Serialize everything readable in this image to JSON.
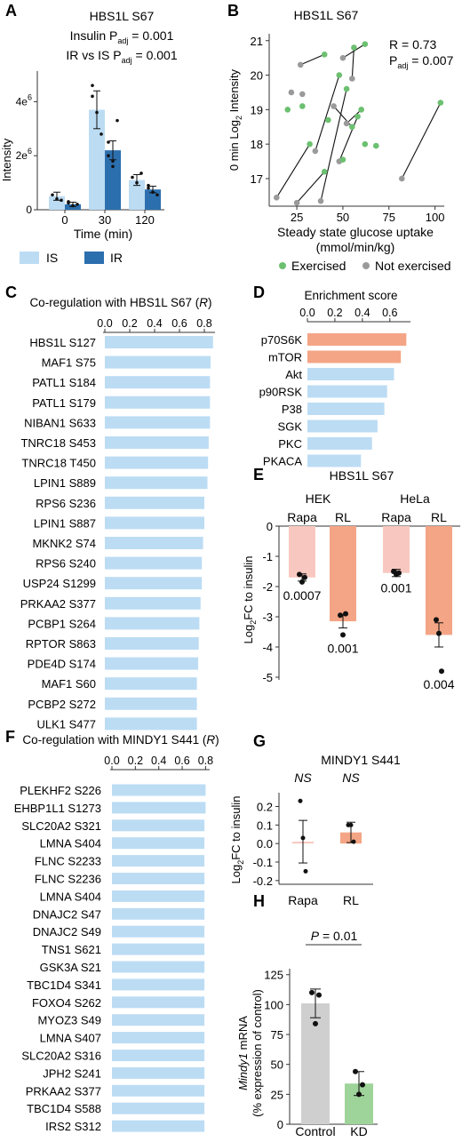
{
  "colors": {
    "IS": "#bcdcf4",
    "IR": "#2c6fae",
    "exercised": "#6cc070",
    "not_exercised": "#9a9a9a",
    "bar_blue": "#bcdcf4",
    "salmon": "#f4a585",
    "salmon_light": "#f8c8c0",
    "gray_bar": "#cfcfcf",
    "green_bar": "#9ed49a"
  },
  "panel_letters": {
    "A": "A",
    "B": "B",
    "C": "C",
    "D": "D",
    "E": "E",
    "F": "F",
    "G": "G",
    "H": "H"
  },
  "chart_data": [
    {
      "panel": "A",
      "type": "bar",
      "title": "HBS1L S67",
      "annot1_pre": "Insulin P",
      "annot1_sub": "adj",
      "annot1_post": " = 0.001",
      "annot2_pre": "IR vs IS P",
      "annot2_sub": "adj",
      "annot2_post": " = 0.001",
      "ylabel": "Intensity",
      "xlabel": "Time (min)",
      "categories": [
        "0",
        "30",
        "120"
      ],
      "yticks": [
        {
          "base": "0",
          "exp": ""
        },
        {
          "base": "2e",
          "exp": "6"
        },
        {
          "base": "4e",
          "exp": "6"
        }
      ],
      "ylim": [
        0,
        5000000
      ],
      "series": [
        {
          "name": "IS",
          "values": [
            500000,
            3700000,
            1100000
          ],
          "err": [
            150000,
            700000,
            200000
          ]
        },
        {
          "name": "IR",
          "values": [
            200000,
            2200000,
            750000
          ],
          "err": [
            80000,
            350000,
            120000
          ]
        }
      ],
      "legend": [
        "IS",
        "IR"
      ]
    },
    {
      "panel": "B",
      "type": "scatter",
      "title": "HBS1L S67",
      "annot_r": "R = 0.73",
      "annot_p_pre": "P",
      "annot_p_sub": "adj",
      "annot_p_post": " = 0.007",
      "xlabel": "Steady state glucose uptake",
      "xlabel2": "(mmol/min/kg)",
      "ylabel": "0 min Log",
      "ylabel_sub": "2",
      "ylabel_post": " Intensity",
      "xlim": [
        10,
        105
      ],
      "ylim": [
        16.2,
        21.2
      ],
      "xticks": [
        25,
        50,
        75,
        100
      ],
      "yticks": [
        17,
        18,
        19,
        20,
        21
      ],
      "legend": [
        "Exercised",
        "Not exercised"
      ],
      "pairs": [
        [
          [
            14,
            16.45
          ],
          [
            32,
            18.0
          ]
        ],
        [
          [
            25,
            16.3
          ],
          [
            40,
            17.2
          ]
        ],
        [
          [
            27,
            20.3
          ],
          [
            40,
            20.6
          ]
        ],
        [
          [
            35,
            17.8
          ],
          [
            48,
            20.0
          ]
        ],
        [
          [
            38,
            16.35
          ],
          [
            52,
            19.6
          ]
        ],
        [
          [
            45,
            19.1
          ],
          [
            55,
            18.5
          ]
        ],
        [
          [
            50,
            20.5
          ],
          [
            62,
            20.9
          ]
        ],
        [
          [
            48,
            17.5
          ],
          [
            58,
            18.8
          ]
        ],
        [
          [
            55,
            19.9
          ],
          [
            56,
            20.8
          ]
        ],
        [
          [
            82,
            17.0
          ],
          [
            103,
            19.2
          ]
        ],
        [
          [
            52,
            18.6
          ],
          [
            60,
            19.0
          ]
        ]
      ],
      "points_exercised": [
        [
          32,
          18.0
        ],
        [
          40,
          17.2
        ],
        [
          40,
          20.6
        ],
        [
          48,
          20.0
        ],
        [
          52,
          19.6
        ],
        [
          55,
          18.5
        ],
        [
          62,
          20.9
        ],
        [
          58,
          18.8
        ],
        [
          103,
          19.2
        ],
        [
          42,
          18.7
        ],
        [
          60,
          19.0
        ],
        [
          62,
          18.0
        ],
        [
          68,
          17.95
        ],
        [
          28,
          19.1
        ],
        [
          20,
          19.0
        ],
        [
          50,
          17.55
        ],
        [
          56,
          20.8
        ]
      ],
      "points_not_exercised": [
        [
          14,
          16.45
        ],
        [
          25,
          16.3
        ],
        [
          27,
          20.3
        ],
        [
          35,
          17.8
        ],
        [
          38,
          16.35
        ],
        [
          45,
          19.1
        ],
        [
          50,
          20.5
        ],
        [
          48,
          17.5
        ],
        [
          55,
          19.9
        ],
        [
          82,
          17.0
        ],
        [
          52,
          18.6
        ],
        [
          22,
          19.5
        ],
        [
          28,
          19.45
        ]
      ]
    },
    {
      "panel": "C",
      "type": "bar",
      "title": "Co-regulation with HBS1L S67 (",
      "title_italic": "R",
      "title_end": ")",
      "xticks": [
        "0.0",
        "0.2",
        "0.4",
        "0.6",
        "0.8"
      ],
      "xlim": [
        0,
        0.9
      ],
      "categories": [
        "HBS1L S127",
        "MAF1 S75",
        "PATL1 S184",
        "PATL1 S179",
        "NIBAN1 S633",
        "TNRC18 S453",
        "TNRC18 T450",
        "LPIN1 S889",
        "RPS6 S236",
        "LPIN1 S887",
        "MKNK2 S74",
        "RPS6 S240",
        "USP24 S1299",
        "PRKAA2 S377",
        "PCBP1 S264",
        "RPTOR S863",
        "PDE4D S174",
        "MAF1 S60",
        "PCBP2 S272",
        "ULK1 S477"
      ],
      "values": [
        0.87,
        0.85,
        0.845,
        0.845,
        0.845,
        0.835,
        0.83,
        0.825,
        0.8,
        0.8,
        0.79,
        0.78,
        0.78,
        0.77,
        0.76,
        0.755,
        0.75,
        0.74,
        0.74,
        0.74
      ]
    },
    {
      "panel": "D",
      "type": "bar",
      "title": "Enrichment score",
      "xticks": [
        "0.0",
        "0.2",
        "0.4",
        "0.6"
      ],
      "xlim": [
        0,
        0.75
      ],
      "categories": [
        "p70S6K",
        "mTOR",
        "Akt",
        "p90RSK",
        "P38",
        "SGK",
        "PKC",
        "PKACA"
      ],
      "values": [
        0.72,
        0.68,
        0.63,
        0.58,
        0.56,
        0.51,
        0.47,
        0.39
      ],
      "highlight": [
        true,
        true,
        false,
        false,
        false,
        false,
        false,
        false
      ]
    },
    {
      "panel": "E",
      "type": "bar",
      "title": "HBS1L S67",
      "groups": [
        "HEK",
        "HeLa"
      ],
      "categories": [
        "Rapa",
        "RL",
        "Rapa",
        "RL"
      ],
      "values": [
        -1.7,
        -3.15,
        -1.55,
        -3.6
      ],
      "err": [
        0.12,
        0.22,
        0.12,
        0.4
      ],
      "points": [
        [
          -1.6,
          -1.85,
          -1.7
        ],
        [
          -2.95,
          -3.6,
          -2.9
        ],
        [
          -1.5,
          -1.6,
          -1.55
        ],
        [
          -3.1,
          -3.55,
          -4.8
        ]
      ],
      "pvalues": [
        "0.0007",
        "0.001",
        "0.001",
        "0.004"
      ],
      "ylabel": "Log",
      "ylabel_sub": "2",
      "ylabel_post": "FC to insulin",
      "yticks": [
        "0",
        "-1",
        "-2",
        "-3",
        "-4",
        "-5"
      ],
      "ylim": [
        -5,
        0
      ]
    },
    {
      "panel": "F",
      "type": "bar",
      "title": "Co-regulation with MINDY1 S441 (",
      "title_italic": "R",
      "title_end": ")",
      "xticks": [
        "0.0",
        "0.2",
        "0.4",
        "0.6",
        "0.8"
      ],
      "xlim": [
        0,
        0.85
      ],
      "categories": [
        "PLEKHF2 S226",
        "EHBP1L1 S1273",
        "SLC20A2 S321",
        "LMNA S404",
        "FLNC S2233",
        "FLNC S2236",
        "LMNA S404",
        "DNAJC2 S47",
        "DNAJC2 S49",
        "TNS1 S621",
        "GSK3A S21",
        "TBC1D4 S341",
        "FOXO4 S262",
        "MYOZ3 S49",
        "LMNA S407",
        "SLC20A2 S316",
        "JPH2 S241",
        "PRKAA2 S377",
        "TBC1D4 S588",
        "IRS2 S312"
      ],
      "values": [
        0.8,
        0.8,
        0.79,
        0.79,
        0.79,
        0.79,
        0.79,
        0.79,
        0.79,
        0.79,
        0.79,
        0.79,
        0.79,
        0.79,
        0.79,
        0.79,
        0.79,
        0.79,
        0.79,
        0.79
      ]
    },
    {
      "panel": "G",
      "type": "bar",
      "title": "MINDY1 S441",
      "ns_labels": [
        "NS",
        "NS"
      ],
      "categories": [
        "Rapa",
        "RL"
      ],
      "values": [
        0.01,
        0.06
      ],
      "err": [
        0.115,
        0.055
      ],
      "points": [
        [
          0.23,
          0.03,
          -0.15
        ],
        [
          0.1,
          0.1,
          0.01
        ]
      ],
      "ylabel": "Log",
      "ylabel_sub": "2",
      "ylabel_post": "FC to insulin",
      "yticks": [
        "0.2",
        "0.1",
        "0.0",
        "-0.1",
        "-0.2"
      ],
      "ylim": [
        -0.22,
        0.26
      ]
    },
    {
      "panel": "H",
      "type": "bar",
      "p_text_italic": "P",
      "p_text_rest": " = 0.01",
      "categories": [
        "Control",
        "KD"
      ],
      "values": [
        101,
        34
      ],
      "err": [
        12,
        10
      ],
      "points": [
        [
          110,
          84,
          108
        ],
        [
          44,
          25,
          33
        ]
      ],
      "ylabel_italic": "Mindy1",
      "ylabel_rest": " mRNA",
      "ylabel2": "(% expression of control)",
      "yticks": [
        "0",
        "25",
        "50",
        "75",
        "100",
        "125"
      ],
      "ylim": [
        0,
        130
      ]
    }
  ]
}
